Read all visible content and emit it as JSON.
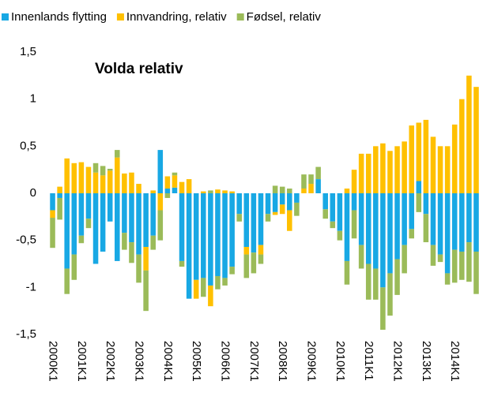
{
  "chart_data": {
    "type": "bar",
    "stacked": true,
    "title": "Volda relativ",
    "categories": [
      "2000K1",
      null,
      null,
      null,
      "2001K1",
      null,
      null,
      null,
      "2002K1",
      null,
      null,
      null,
      "2003K1",
      null,
      null,
      null,
      "2004K1",
      null,
      null,
      null,
      "2005K1",
      null,
      null,
      null,
      "2006K1",
      null,
      null,
      null,
      "2007K1",
      null,
      null,
      null,
      "2008K1",
      null,
      null,
      null,
      "2009K1",
      null,
      null,
      null,
      "2010K1",
      null,
      null,
      null,
      "2011K1",
      null,
      null,
      null,
      "2012K1",
      null,
      null,
      null,
      "2013K1",
      null,
      null,
      null,
      "2014K1",
      null,
      null,
      null
    ],
    "series": [
      {
        "name": "Innenlands flytting",
        "color": "#18a8e4",
        "values": [
          -0.18,
          -0.05,
          -0.8,
          -0.65,
          -0.45,
          -0.27,
          -0.75,
          -0.62,
          -0.3,
          -0.72,
          -0.42,
          -0.52,
          -0.65,
          -0.57,
          -0.45,
          0.46,
          0.05,
          0.06,
          -0.72,
          -1.12,
          -0.92,
          -0.9,
          -0.98,
          -0.88,
          -0.9,
          -0.78,
          -0.22,
          -0.57,
          -0.63,
          -0.55,
          -0.22,
          -0.2,
          -0.12,
          -0.18,
          -0.1,
          0,
          0,
          0.15,
          -0.17,
          -0.3,
          -0.4,
          -0.72,
          -0.18,
          -0.55,
          -0.75,
          -0.8,
          -1.0,
          -0.85,
          -0.7,
          -0.55,
          -0.38,
          0.13,
          -0.22,
          -0.55,
          -0.65,
          -0.85,
          -0.6,
          -0.62,
          -0.52,
          -0.62
        ]
      },
      {
        "name": "Innvandring, relativ",
        "color": "#ffc000",
        "values": [
          -0.08,
          0.07,
          0.37,
          0.32,
          0.33,
          0.28,
          0.22,
          0.19,
          0.24,
          0.38,
          0.21,
          0.22,
          0.1,
          -0.25,
          0.03,
          -0.18,
          0.13,
          0.13,
          0.12,
          0.15,
          -0.2,
          0.02,
          -0.22,
          0.04,
          0.03,
          0.02,
          0,
          -0.08,
          0,
          -0.1,
          0,
          -0.03,
          -0.1,
          -0.22,
          0,
          0.05,
          0.1,
          0,
          0,
          0,
          0,
          0.05,
          0.25,
          0.42,
          0.42,
          0.5,
          0.53,
          0.45,
          0.5,
          0.55,
          0.72,
          0.62,
          0.78,
          0.6,
          0.5,
          0.5,
          0.73,
          1.0,
          1.25,
          1.13
        ]
      },
      {
        "name": "Fødsel, relativ",
        "color": "#9bbb59",
        "values": [
          -0.32,
          -0.23,
          -0.27,
          -0.27,
          -0.08,
          -0.1,
          0.1,
          0.1,
          0.02,
          0.08,
          -0.18,
          -0.22,
          -0.3,
          -0.43,
          -0.15,
          -0.32,
          -0.05,
          0.03,
          -0.06,
          0,
          0,
          -0.2,
          0.03,
          -0.14,
          -0.08,
          -0.08,
          -0.08,
          -0.25,
          -0.22,
          -0.1,
          -0.08,
          0.08,
          0.07,
          0.05,
          -0.14,
          0.15,
          0.1,
          0.13,
          -0.1,
          -0.07,
          -0.1,
          -0.25,
          -0.3,
          -0.25,
          -0.38,
          -0.33,
          -0.45,
          -0.45,
          -0.38,
          -0.3,
          -0.1,
          -0.2,
          -0.3,
          -0.22,
          -0.08,
          -0.12,
          -0.35,
          -0.3,
          -0.42,
          -0.45
        ]
      }
    ],
    "ylim": [
      -1.5,
      1.5
    ],
    "yticks": [
      {
        "value": -1.5,
        "label": "-1,5"
      },
      -1,
      {
        "value": -0.5,
        "label": "-0,5"
      },
      0,
      {
        "value": 0.5,
        "label": "0,5"
      },
      1,
      {
        "value": 1.5,
        "label": "1,5"
      }
    ],
    "grid": false,
    "legend": "top"
  }
}
